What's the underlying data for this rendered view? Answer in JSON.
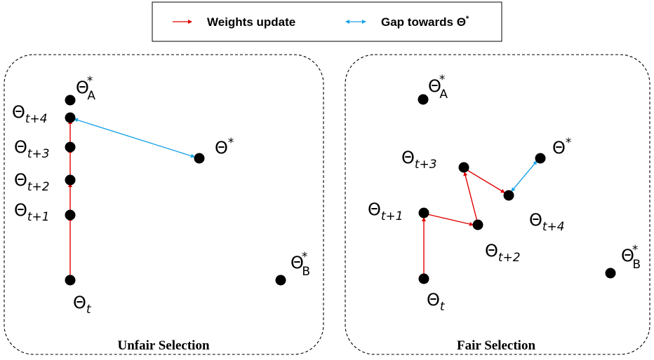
{
  "legend": {
    "weights_update": "Weights update",
    "gap_towards": "Gap towards ",
    "gap_symbol": "Θ",
    "gap_sup": "*",
    "colors": {
      "update": "#e00000",
      "gap": "#1aa3e8"
    }
  },
  "panels": [
    {
      "title": "Unfair Selection",
      "points": [
        {
          "base": "Θ",
          "sup": "*",
          "sub": "A"
        },
        {
          "base": "Θ",
          "sub": "t+4"
        },
        {
          "base": "Θ",
          "sup": "*"
        },
        {
          "base": "Θ",
          "sub": "t+3"
        },
        {
          "base": "Θ",
          "sub": "t+2"
        },
        {
          "base": "Θ",
          "sub": "t+1"
        },
        {
          "base": "Θ",
          "sup": "*",
          "sub": "B"
        },
        {
          "base": "Θ",
          "sub": "t"
        }
      ]
    },
    {
      "title": "Fair Selection",
      "points": [
        {
          "base": "Θ",
          "sup": "*",
          "sub": "A"
        },
        {
          "base": "Θ",
          "sup": "*"
        },
        {
          "base": "Θ",
          "sub": "t+3"
        },
        {
          "base": "Θ",
          "sub": "t+4"
        },
        {
          "base": "Θ",
          "sub": "t+1"
        },
        {
          "base": "Θ",
          "sub": "t+2"
        },
        {
          "base": "Θ",
          "sup": "*",
          "sub": "B"
        },
        {
          "base": "Θ",
          "sub": "t"
        }
      ]
    }
  ]
}
